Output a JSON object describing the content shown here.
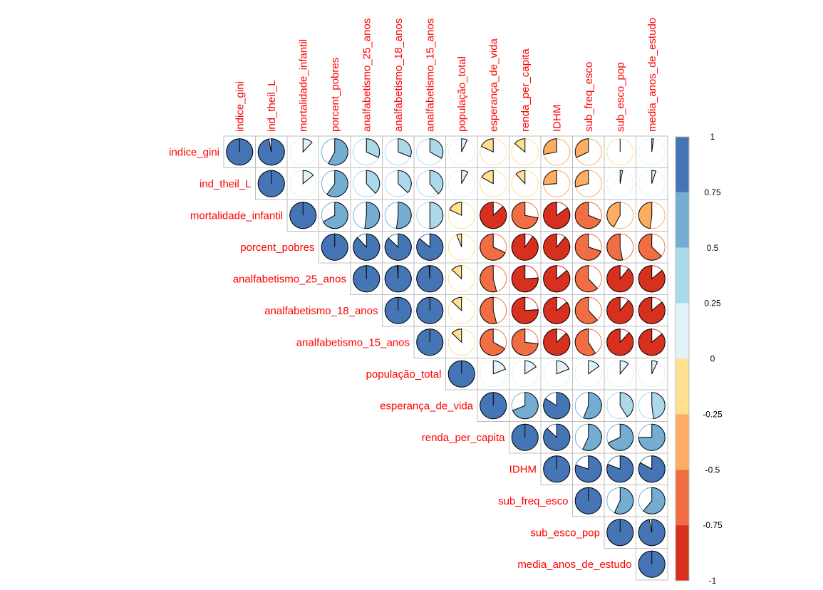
{
  "chart_data": {
    "type": "heatmap",
    "style": "pie correlation matrix (upper triangle)",
    "variables": [
      "indice_gini",
      "ind_theil_L",
      "mortalidade_infantil",
      "porcent_pobres",
      "analfabetismo_25_anos",
      "analfabetismo_18_anos",
      "analfabetismo_15_anos",
      "população_total",
      "esperança_de_vida",
      "renda_per_capita",
      "IDHM",
      "sub_freq_esco",
      "sub_esco_pop",
      "media_anos_de_estudo"
    ],
    "matrix": [
      [
        1,
        0.97,
        0.12,
        0.58,
        0.32,
        0.31,
        0.33,
        0.07,
        -0.18,
        -0.14,
        -0.28,
        -0.32,
        0.0,
        0.02
      ],
      [
        0.97,
        1,
        0.14,
        0.6,
        0.38,
        0.37,
        0.39,
        0.08,
        -0.17,
        -0.12,
        -0.26,
        -0.29,
        0.03,
        0.05
      ],
      [
        0.12,
        0.14,
        1,
        0.67,
        0.52,
        0.52,
        0.5,
        -0.18,
        -0.87,
        -0.72,
        -0.85,
        -0.69,
        -0.42,
        -0.48
      ],
      [
        0.58,
        0.6,
        0.67,
        1,
        0.88,
        0.87,
        0.86,
        -0.06,
        -0.68,
        -0.9,
        -0.89,
        -0.7,
        -0.53,
        -0.63
      ],
      [
        0.32,
        0.38,
        0.52,
        0.88,
        1,
        0.99,
        0.99,
        -0.13,
        -0.54,
        -0.76,
        -0.86,
        -0.62,
        -0.89,
        -0.86
      ],
      [
        0.31,
        0.37,
        0.52,
        0.87,
        0.99,
        1,
        1.0,
        -0.13,
        -0.54,
        -0.76,
        -0.86,
        -0.62,
        -0.89,
        -0.86
      ],
      [
        0.33,
        0.39,
        0.5,
        0.86,
        0.99,
        1.0,
        1,
        -0.13,
        -0.67,
        -0.73,
        -0.87,
        -0.59,
        -0.88,
        -0.86
      ],
      [
        0.07,
        0.08,
        -0.18,
        -0.06,
        -0.13,
        -0.13,
        -0.13,
        1,
        0.19,
        0.16,
        0.19,
        0.15,
        0.11,
        0.07
      ],
      [
        -0.18,
        -0.17,
        -0.87,
        -0.68,
        -0.54,
        -0.54,
        -0.67,
        0.19,
        1,
        0.69,
        0.84,
        0.56,
        0.41,
        0.48
      ],
      [
        -0.14,
        -0.12,
        -0.72,
        -0.9,
        -0.76,
        -0.76,
        -0.73,
        0.16,
        0.69,
        1,
        0.87,
        0.57,
        0.68,
        0.75
      ],
      [
        -0.28,
        -0.26,
        -0.85,
        -0.89,
        -0.86,
        -0.86,
        -0.87,
        0.19,
        0.84,
        0.87,
        1,
        0.8,
        0.81,
        0.83
      ],
      [
        -0.32,
        -0.29,
        -0.69,
        -0.7,
        -0.62,
        -0.62,
        -0.59,
        0.15,
        0.56,
        0.57,
        0.8,
        1,
        0.57,
        0.61
      ],
      [
        0.0,
        0.03,
        -0.42,
        -0.53,
        -0.89,
        -0.89,
        -0.88,
        0.11,
        0.41,
        0.68,
        0.81,
        0.57,
        1,
        0.97
      ],
      [
        0.02,
        0.05,
        -0.48,
        -0.63,
        -0.86,
        -0.86,
        -0.86,
        0.07,
        0.48,
        0.75,
        0.83,
        0.61,
        0.97,
        1
      ]
    ],
    "colorbar": {
      "range": [
        -1,
        1
      ],
      "ticks": [
        "1",
        "0.75",
        "0.5",
        "0.25",
        "0",
        "-0.25",
        "-0.5",
        "-0.75",
        "-1"
      ],
      "bins": [
        {
          "from": -1.0,
          "to": -0.75,
          "color": "#d7301f"
        },
        {
          "from": -0.75,
          "to": -0.5,
          "color": "#f16d43"
        },
        {
          "from": -0.5,
          "to": -0.25,
          "color": "#fcad61"
        },
        {
          "from": -0.25,
          "to": 0.0,
          "color": "#fee090"
        },
        {
          "from": 0.0,
          "to": 0.25,
          "color": "#e0f3f8"
        },
        {
          "from": 0.25,
          "to": 0.5,
          "color": "#abd9e9"
        },
        {
          "from": 0.5,
          "to": 0.75,
          "color": "#74add1"
        },
        {
          "from": 0.75,
          "to": 1.0,
          "color": "#4575b4"
        }
      ]
    },
    "label_color": "#ff0000",
    "grid_color": "#bebebe"
  }
}
